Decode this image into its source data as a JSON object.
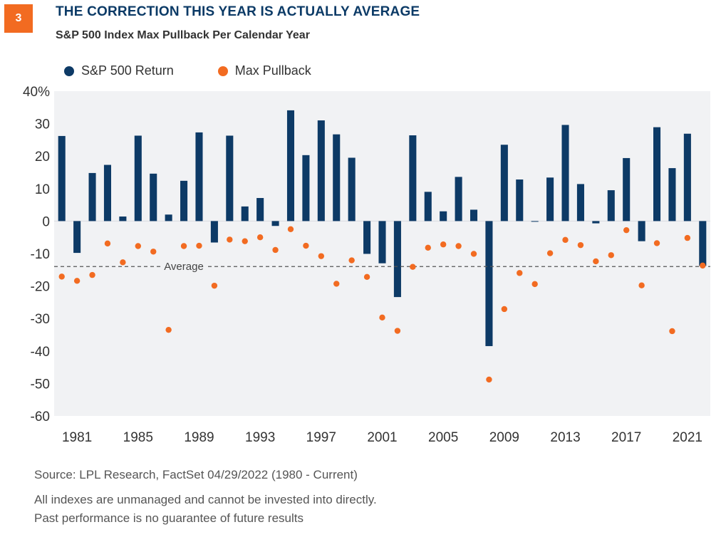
{
  "header": {
    "badge": "3",
    "title": "THE CORRECTION THIS YEAR IS ACTUALLY AVERAGE",
    "subtitle": "S&P 500 Index Max Pullback Per Calendar Year"
  },
  "footer": {
    "source": "Source: LPL Research, FactSet 04/29/2022 (1980 - Current)",
    "disclaimer_1": "All indexes are unmanaged and cannot be invested into directly.",
    "disclaimer_2": "Past performance is no guarantee of future results"
  },
  "colors": {
    "return_bar": "#0d3a66",
    "pullback_dot": "#f26b21",
    "plot_background": "#f1f2f4",
    "average_line": "#555555"
  },
  "chart_data": {
    "type": "bar",
    "ylim": [
      -60,
      40
    ],
    "y_ticks": [
      40,
      30,
      20,
      10,
      0,
      -10,
      -20,
      -30,
      -40,
      -50,
      -60
    ],
    "y_tick_labels": [
      "40%",
      "30",
      "20",
      "10",
      "0",
      "-10",
      "-20",
      "-30",
      "-40",
      "-50",
      "-60"
    ],
    "x_tick_labels": [
      "1981",
      "1985",
      "1989",
      "1993",
      "1997",
      "2001",
      "2005",
      "2009",
      "2013",
      "2017",
      "2021"
    ],
    "x_tick_years": [
      1981,
      1985,
      1989,
      1993,
      1997,
      2001,
      2005,
      2009,
      2013,
      2017,
      2021
    ],
    "years": [
      1980,
      1981,
      1982,
      1983,
      1984,
      1985,
      1986,
      1987,
      1988,
      1989,
      1990,
      1991,
      1992,
      1993,
      1994,
      1995,
      1996,
      1997,
      1998,
      1999,
      2000,
      2001,
      2002,
      2003,
      2004,
      2005,
      2006,
      2007,
      2008,
      2009,
      2010,
      2011,
      2012,
      2013,
      2014,
      2015,
      2016,
      2017,
      2018,
      2019,
      2020,
      2021,
      2022
    ],
    "grid": false,
    "legend_position": "top-left",
    "average": {
      "label": "Average",
      "value": -14
    },
    "series": [
      {
        "name": "S&P 500 Return",
        "kind": "bar",
        "values": [
          26.2,
          -9.8,
          14.8,
          17.3,
          1.4,
          26.3,
          14.6,
          2.0,
          12.4,
          27.3,
          -6.6,
          26.3,
          4.5,
          7.1,
          -1.5,
          34.1,
          20.3,
          31.0,
          26.7,
          19.5,
          -10.1,
          -13.0,
          -23.4,
          26.4,
          9.0,
          3.0,
          13.6,
          3.5,
          -38.5,
          23.5,
          12.8,
          -0.1,
          13.4,
          29.6,
          11.4,
          -0.7,
          9.5,
          19.4,
          -6.2,
          28.9,
          16.3,
          26.9,
          -13.8
        ]
      },
      {
        "name": "Max Pullback",
        "kind": "scatter",
        "values": [
          -17.1,
          -18.4,
          -16.6,
          -6.9,
          -12.7,
          -7.7,
          -9.4,
          -33.5,
          -7.7,
          -7.6,
          -19.9,
          -5.7,
          -6.2,
          -5.0,
          -8.9,
          -2.5,
          -7.6,
          -10.8,
          -19.3,
          -12.1,
          -17.2,
          -29.7,
          -33.8,
          -14.1,
          -8.2,
          -7.2,
          -7.7,
          -10.1,
          -48.8,
          -27.1,
          -16.0,
          -19.4,
          -9.9,
          -5.8,
          -7.4,
          -12.4,
          -10.5,
          -2.8,
          -19.8,
          -6.8,
          -33.9,
          -5.2,
          -13.7
        ]
      }
    ]
  }
}
